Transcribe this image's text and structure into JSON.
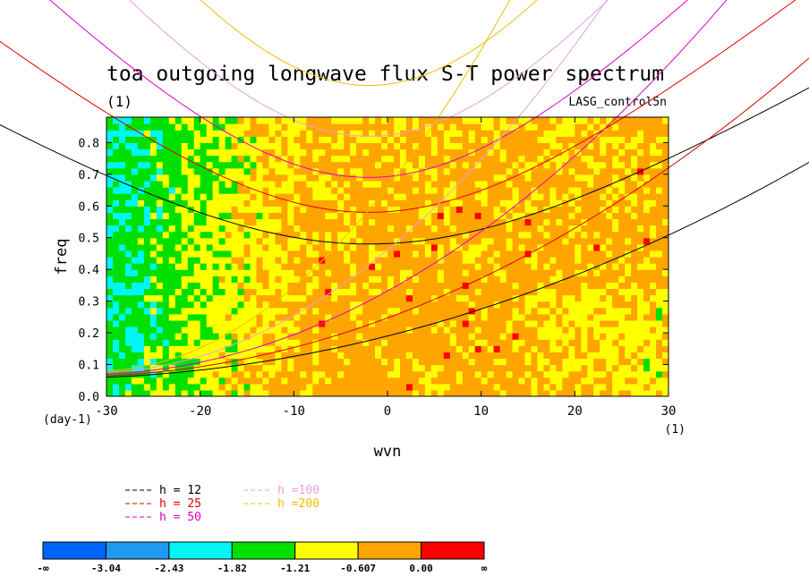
{
  "chart_data": {
    "type": "heatmap",
    "title": "toa outgoing longwave flux S-T power spectrum",
    "subtitle_left": "(1)",
    "subtitle_right": "LASG_control5n",
    "xlabel": "wvn",
    "ylabel": "freq",
    "x_unit": "(1)",
    "y_unit": "(day-1)",
    "xlim": [
      -30,
      30
    ],
    "ylim": [
      0,
      0.88
    ],
    "x_ticks": [
      -30,
      -20,
      -10,
      0,
      10,
      20,
      30
    ],
    "y_ticks": [
      0.0,
      0.1,
      0.2,
      0.3,
      0.4,
      0.5,
      0.6,
      0.7,
      0.8
    ],
    "colorbar": {
      "colors": [
        "#0064ff",
        "#1e9bf0",
        "#00f5f5",
        "#00e000",
        "#ffff00",
        "#ffa500",
        "#ff0000"
      ],
      "labels": [
        "-∞",
        "-3.04",
        "-2.43",
        "-1.82",
        "-1.21",
        "-0.607",
        "0.00",
        "∞"
      ]
    },
    "legend": [
      {
        "label": "h = 12",
        "color": "#000000",
        "text_color": "#000000"
      },
      {
        "label": "h = 25",
        "color": "#e00000",
        "text_color": "#e00000"
      },
      {
        "label": "h = 50",
        "color": "#e000c0",
        "text_color": "#e000c0"
      },
      {
        "label": "h =100",
        "color": "#e8a0e0",
        "text_color": "#e8a0e0"
      },
      {
        "label": "h =200",
        "color": "#f0c000",
        "text_color": "#f0c000"
      }
    ],
    "dispersion_curves": [
      {
        "h": 12,
        "color": "#000000",
        "symmetric_min": 0.48,
        "kelvin_start": 0.06
      },
      {
        "h": 25,
        "color": "#e00000",
        "symmetric_min": 0.58,
        "kelvin_start": 0.065
      },
      {
        "h": 50,
        "color": "#e000c0",
        "symmetric_min": 0.69,
        "kelvin_start": 0.07
      },
      {
        "h": 100,
        "color": "#e8a0e0",
        "symmetric_min": 0.82,
        "kelvin_start": 0.075
      },
      {
        "h": 200,
        "color": "#f0c000",
        "symmetric_min": 0.98,
        "kelvin_start": 0.08
      }
    ]
  }
}
